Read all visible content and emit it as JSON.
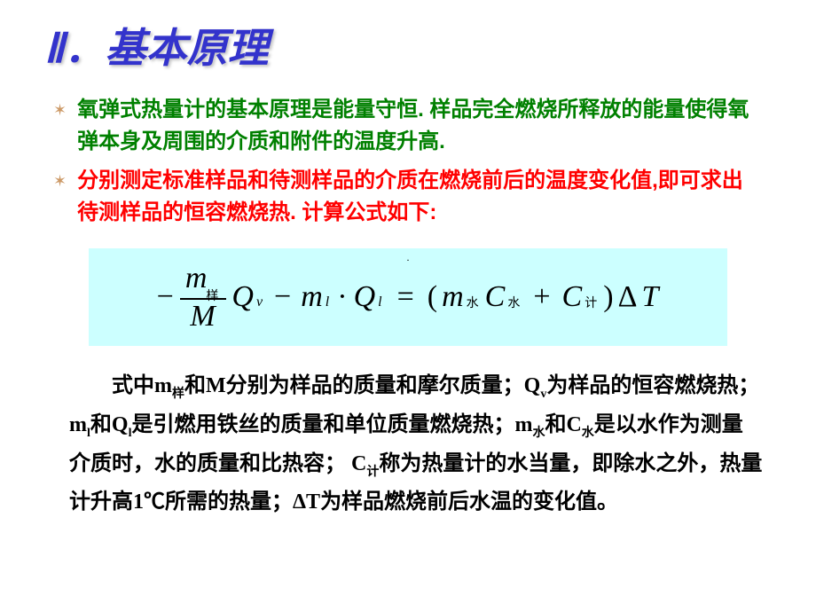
{
  "title": "Ⅱ．基本原理",
  "title_color": "#3333cc",
  "bullets": {
    "star_icon": "✶",
    "star_color": "#cc9966",
    "b1": {
      "text": "氧弹式热量计的基本原理是能量守恒. 样品完全燃烧所释放的能量使得氧弹本身及周围的介质和附件的温度升高.",
      "color": "#008000"
    },
    "b2": {
      "text": "分别测定标准样品和待测样品的介质在燃烧前后的温度变化值,即可求出待测样品的恒容燃烧热. 计算公式如下:",
      "color": "#ff0000"
    }
  },
  "formula": {
    "bg_color": "#ccffff",
    "minus1": "−",
    "frac_num_var": "m",
    "frac_num_sub": "样",
    "frac_den": "M",
    "Q1": "Q",
    "Q1_sub": "v",
    "minus2": "−",
    "m_l": "m",
    "m_l_sub": "l",
    "dot": "·",
    "Q2": "Q",
    "Q2_sub": "l",
    "eq": "=",
    "lparen": "(",
    "m_w": "m",
    "m_w_sub": "水",
    "C_w": "C",
    "C_w_sub": "水",
    "plus": "+",
    "C_j": "C",
    "C_j_sub": "计",
    "rparen": ")",
    "delta": "Δ",
    "T": "T"
  },
  "explain": {
    "p1a": "式中",
    "m_yang": "m",
    "m_yang_sub": "样",
    "p1b": "和",
    "M": "M",
    "p1c": "分别为样品的质量和摩尔质量；",
    "Qv": "Q",
    "Qv_sub": "v",
    "p1d": "为样品的恒容燃烧热；",
    "ml": "m",
    "ml_sub": "l",
    "p1e": "和",
    "Ql": "Q",
    "Ql_sub": "l",
    "p1f": "是引燃用铁丝的质量和单位质量燃烧热；",
    "mw": "m",
    "mw_sub": "水",
    "p1g": "和",
    "Cw": "C",
    "Cw_sub": "水",
    "p1h": "是以水作为测量介质时，水的质量和比热容；",
    "Cj": "C",
    "Cj_sub": "计",
    "p1i": "称为热量计的水当量，即除水之外，热量计升高",
    "one": "1",
    "celsius": "℃",
    "p1j": "所需的热量；",
    "dT": "ΔT",
    "p1k": "为样品燃烧前后水温的变化值。"
  }
}
